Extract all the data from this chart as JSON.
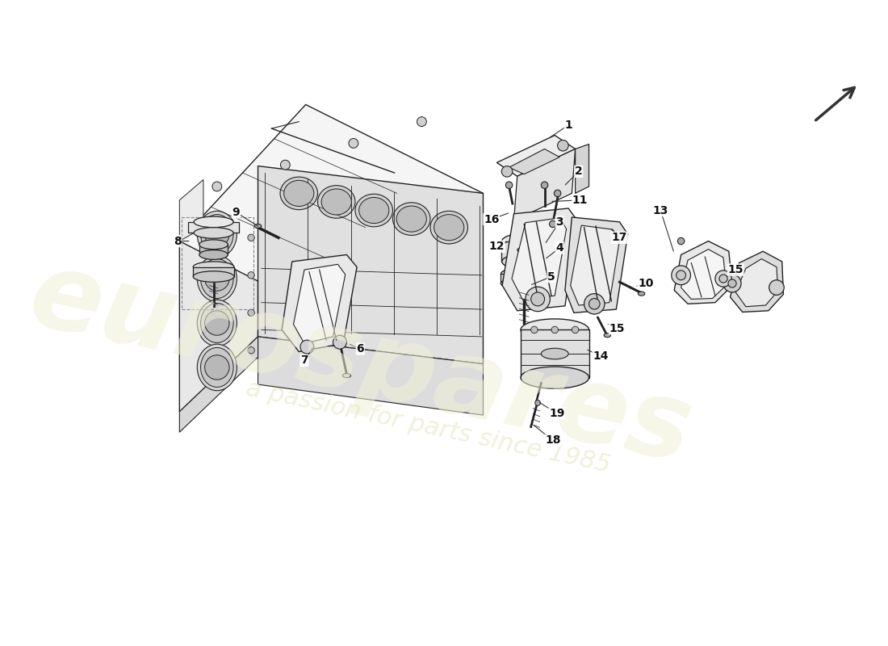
{
  "background_color": "#ffffff",
  "line_color": "#222222",
  "fill_light": "#f0f0f0",
  "fill_mid": "#e0e0e0",
  "fill_dark": "#c8c8c8",
  "watermark_text1": "eurospares",
  "watermark_text2": "a passion for parts since 1985",
  "watermark_color": "#f0f0d8",
  "watermark_alpha": 0.6,
  "label_fontsize": 10,
  "label_color": "#111111",
  "arrow_color": "#333333",
  "lw": 0.9
}
